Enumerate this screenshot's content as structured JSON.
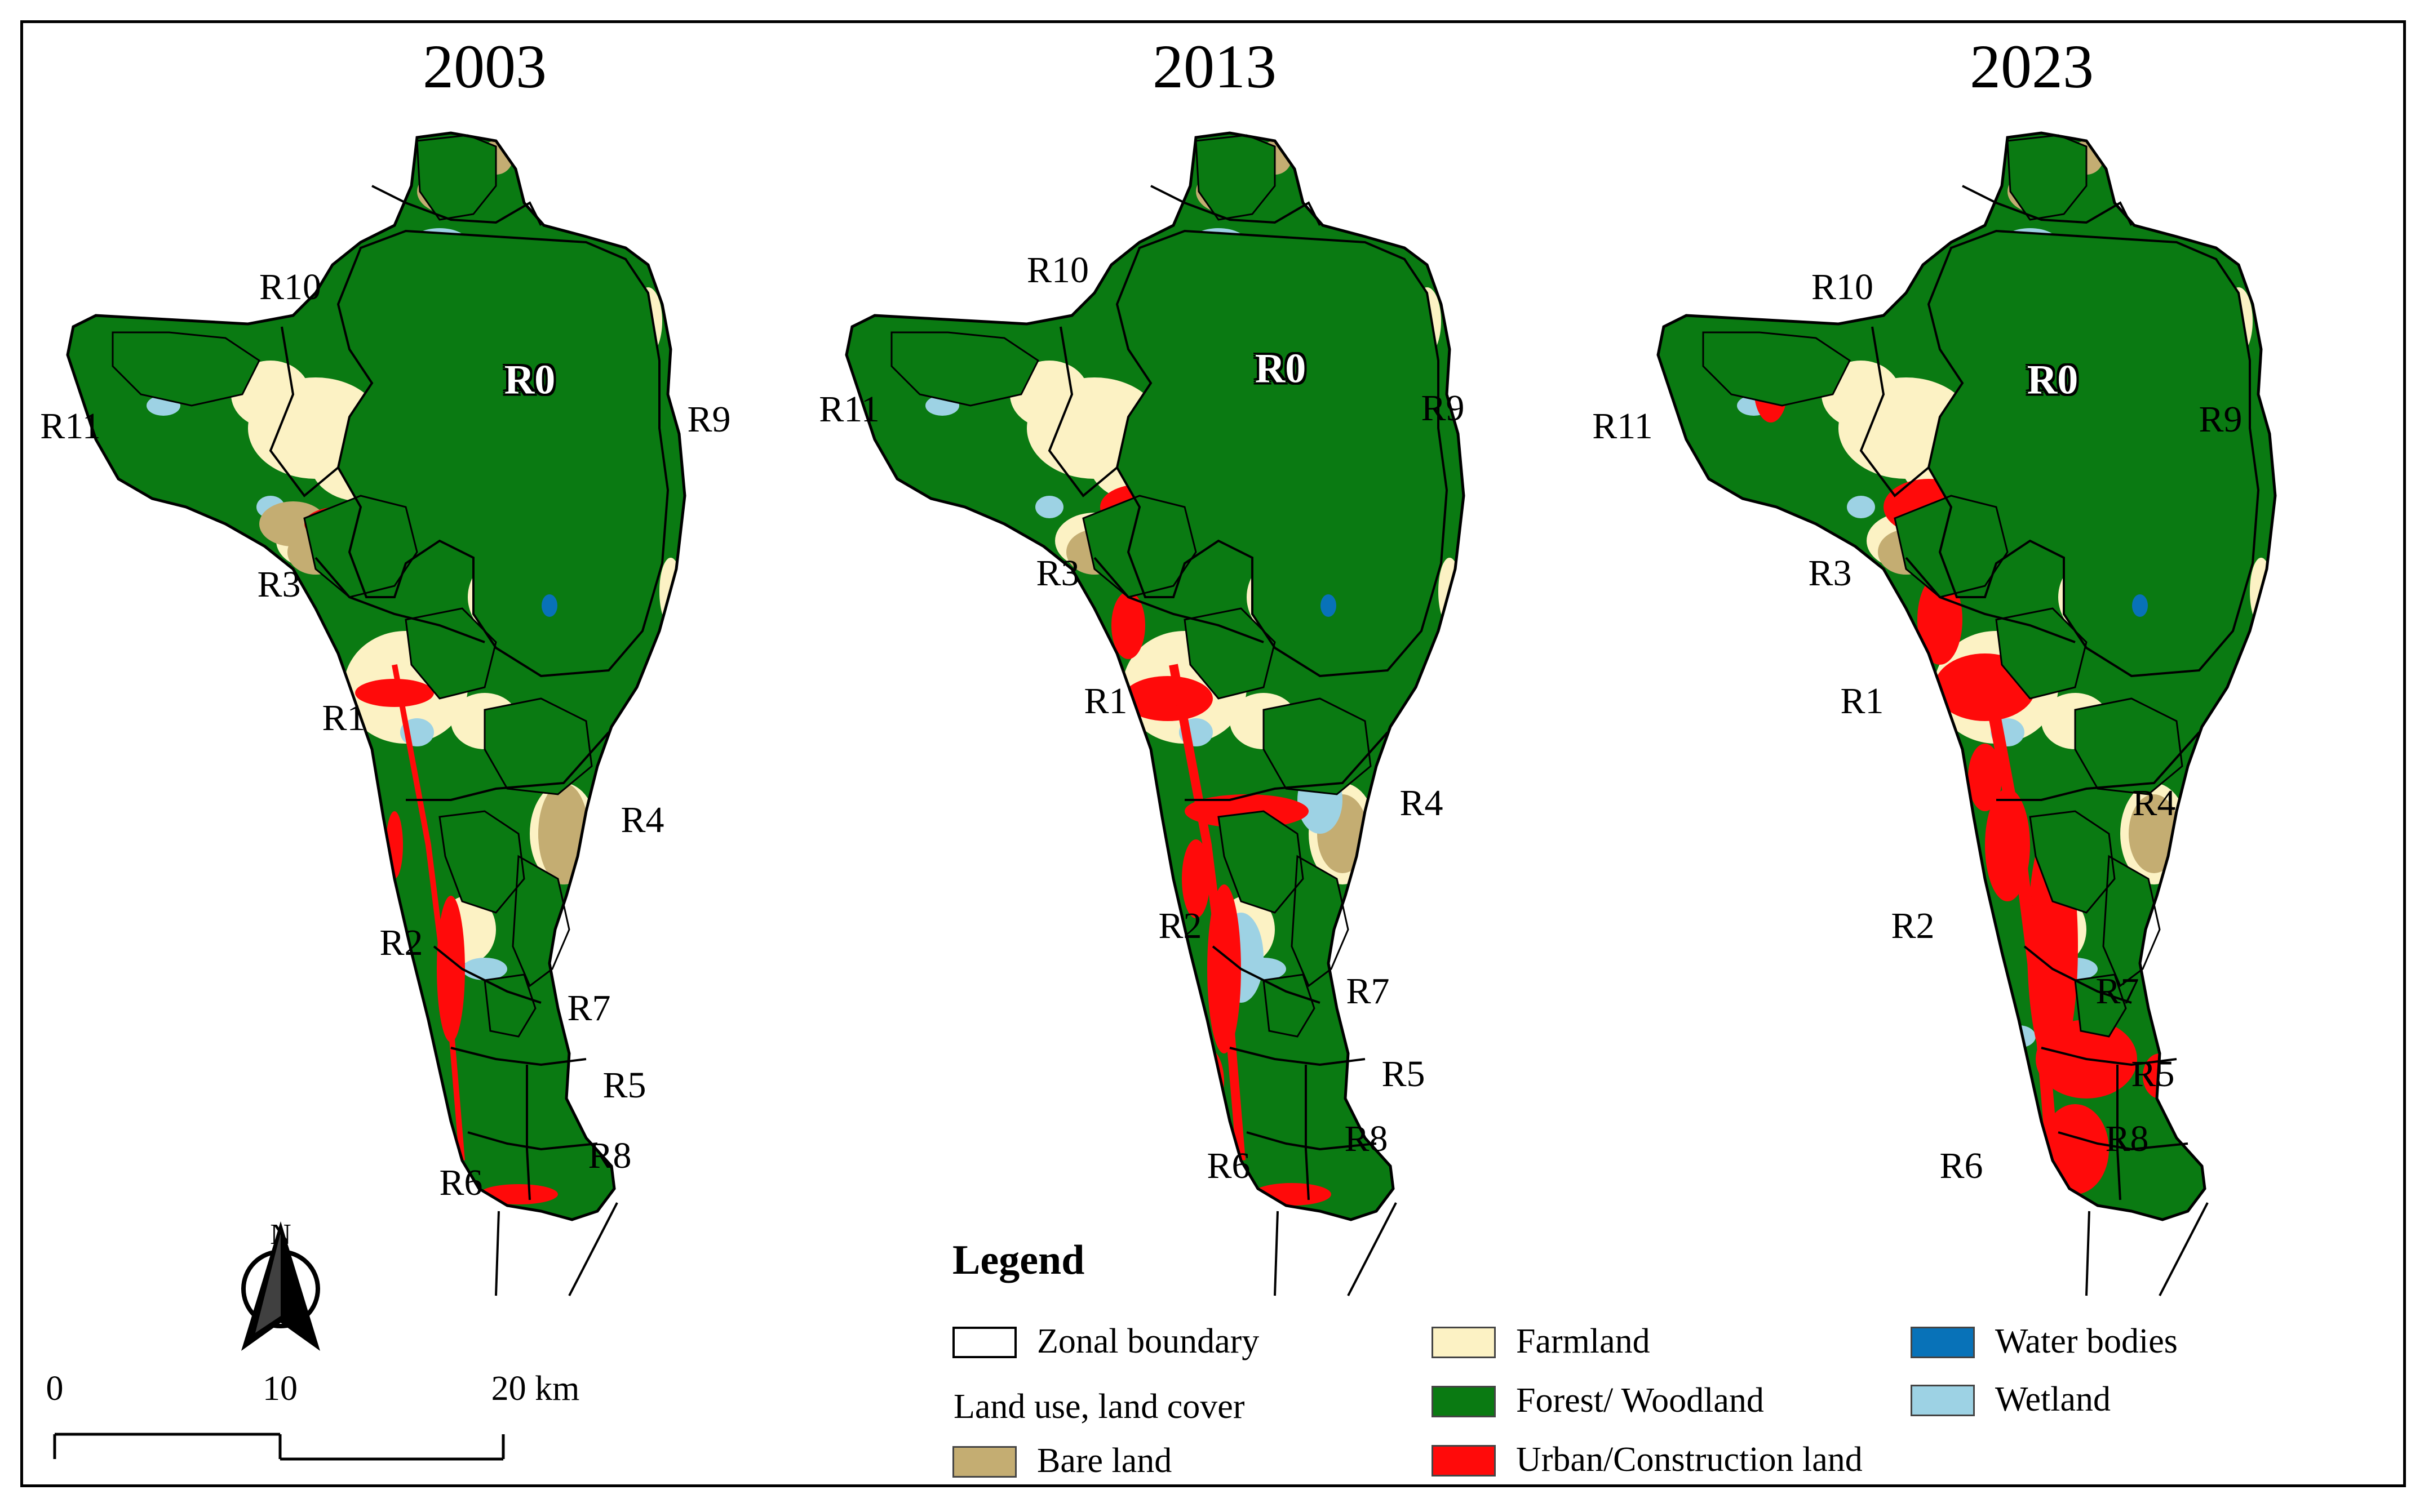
{
  "maps": [
    {
      "year": "2003"
    },
    {
      "year": "2013"
    },
    {
      "year": "2023"
    }
  ],
  "region_labels": [
    "R0",
    "R1",
    "R2",
    "R3",
    "R4",
    "R5",
    "R6",
    "R7",
    "R8",
    "R9",
    "R10",
    "R11"
  ],
  "colors": {
    "forest": "#0a7a12",
    "farmland": "#fcf2c4",
    "urban": "#ff0a0a",
    "bare": "#c4ad72",
    "water": "#0872b8",
    "wetland": "#9dd2e4",
    "boundary": "#000000"
  },
  "north_arrow": {
    "label": "N",
    "icon": "north-arrow-icon"
  },
  "scale_bar": {
    "ticks": [
      "0",
      "10",
      "20 km"
    ]
  },
  "legend": {
    "title": "Legend",
    "boundary_label": "Zonal boundary",
    "section_label": "Land use, land cover",
    "items": [
      {
        "label": "Bare land",
        "color": "#c4ad72"
      },
      {
        "label": "Farmland",
        "color": "#fcf2c4"
      },
      {
        "label": "Forest/ Woodland",
        "color": "#0a7a12"
      },
      {
        "label": "Urban/Construction land",
        "color": "#ff0a0a"
      },
      {
        "label": "Water bodies",
        "color": "#0872b8"
      },
      {
        "label": "Wetland",
        "color": "#9dd2e4"
      }
    ]
  }
}
